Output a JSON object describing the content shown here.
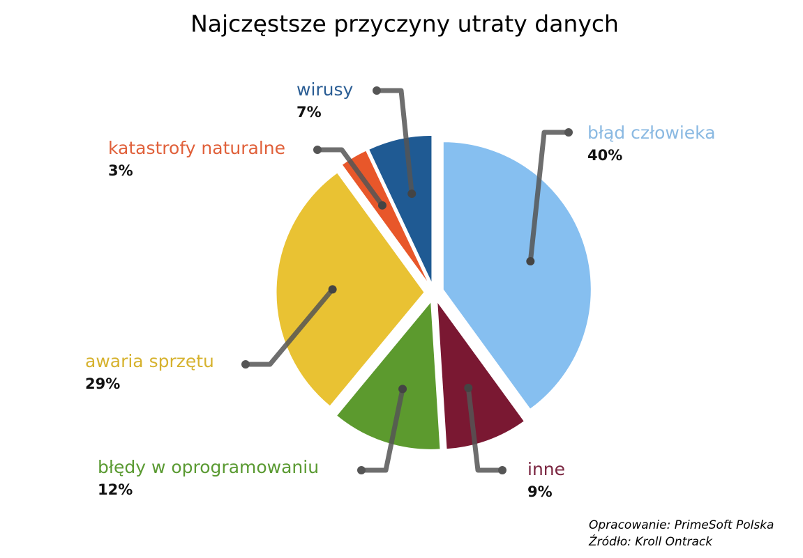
{
  "chart_data": {
    "type": "pie",
    "title": "Najczęstsze przyczyny utraty danych",
    "categories": [
      "błąd człowieka",
      "inne",
      "błędy w oprogramowaniu",
      "awaria sprzętu",
      "katastrofy naturalne",
      "wirusy"
    ],
    "values": [
      40,
      9,
      12,
      29,
      3,
      7
    ],
    "value_labels": [
      "40%",
      "9%",
      "12%",
      "29%",
      "3%",
      "7%"
    ],
    "colors": [
      "#86bff0",
      "#7a1832",
      "#5c9a2e",
      "#e9c233",
      "#e8572a",
      "#1f5a93"
    ],
    "label_colors": [
      "#8ab9e2",
      "#7a2540",
      "#5a9a32",
      "#d6b22e",
      "#e0603a",
      "#2a5d94"
    ],
    "annotations": [
      "Opracowanie: PrimeSoft Polska",
      "Źródło: Kroll Ontrack"
    ]
  }
}
